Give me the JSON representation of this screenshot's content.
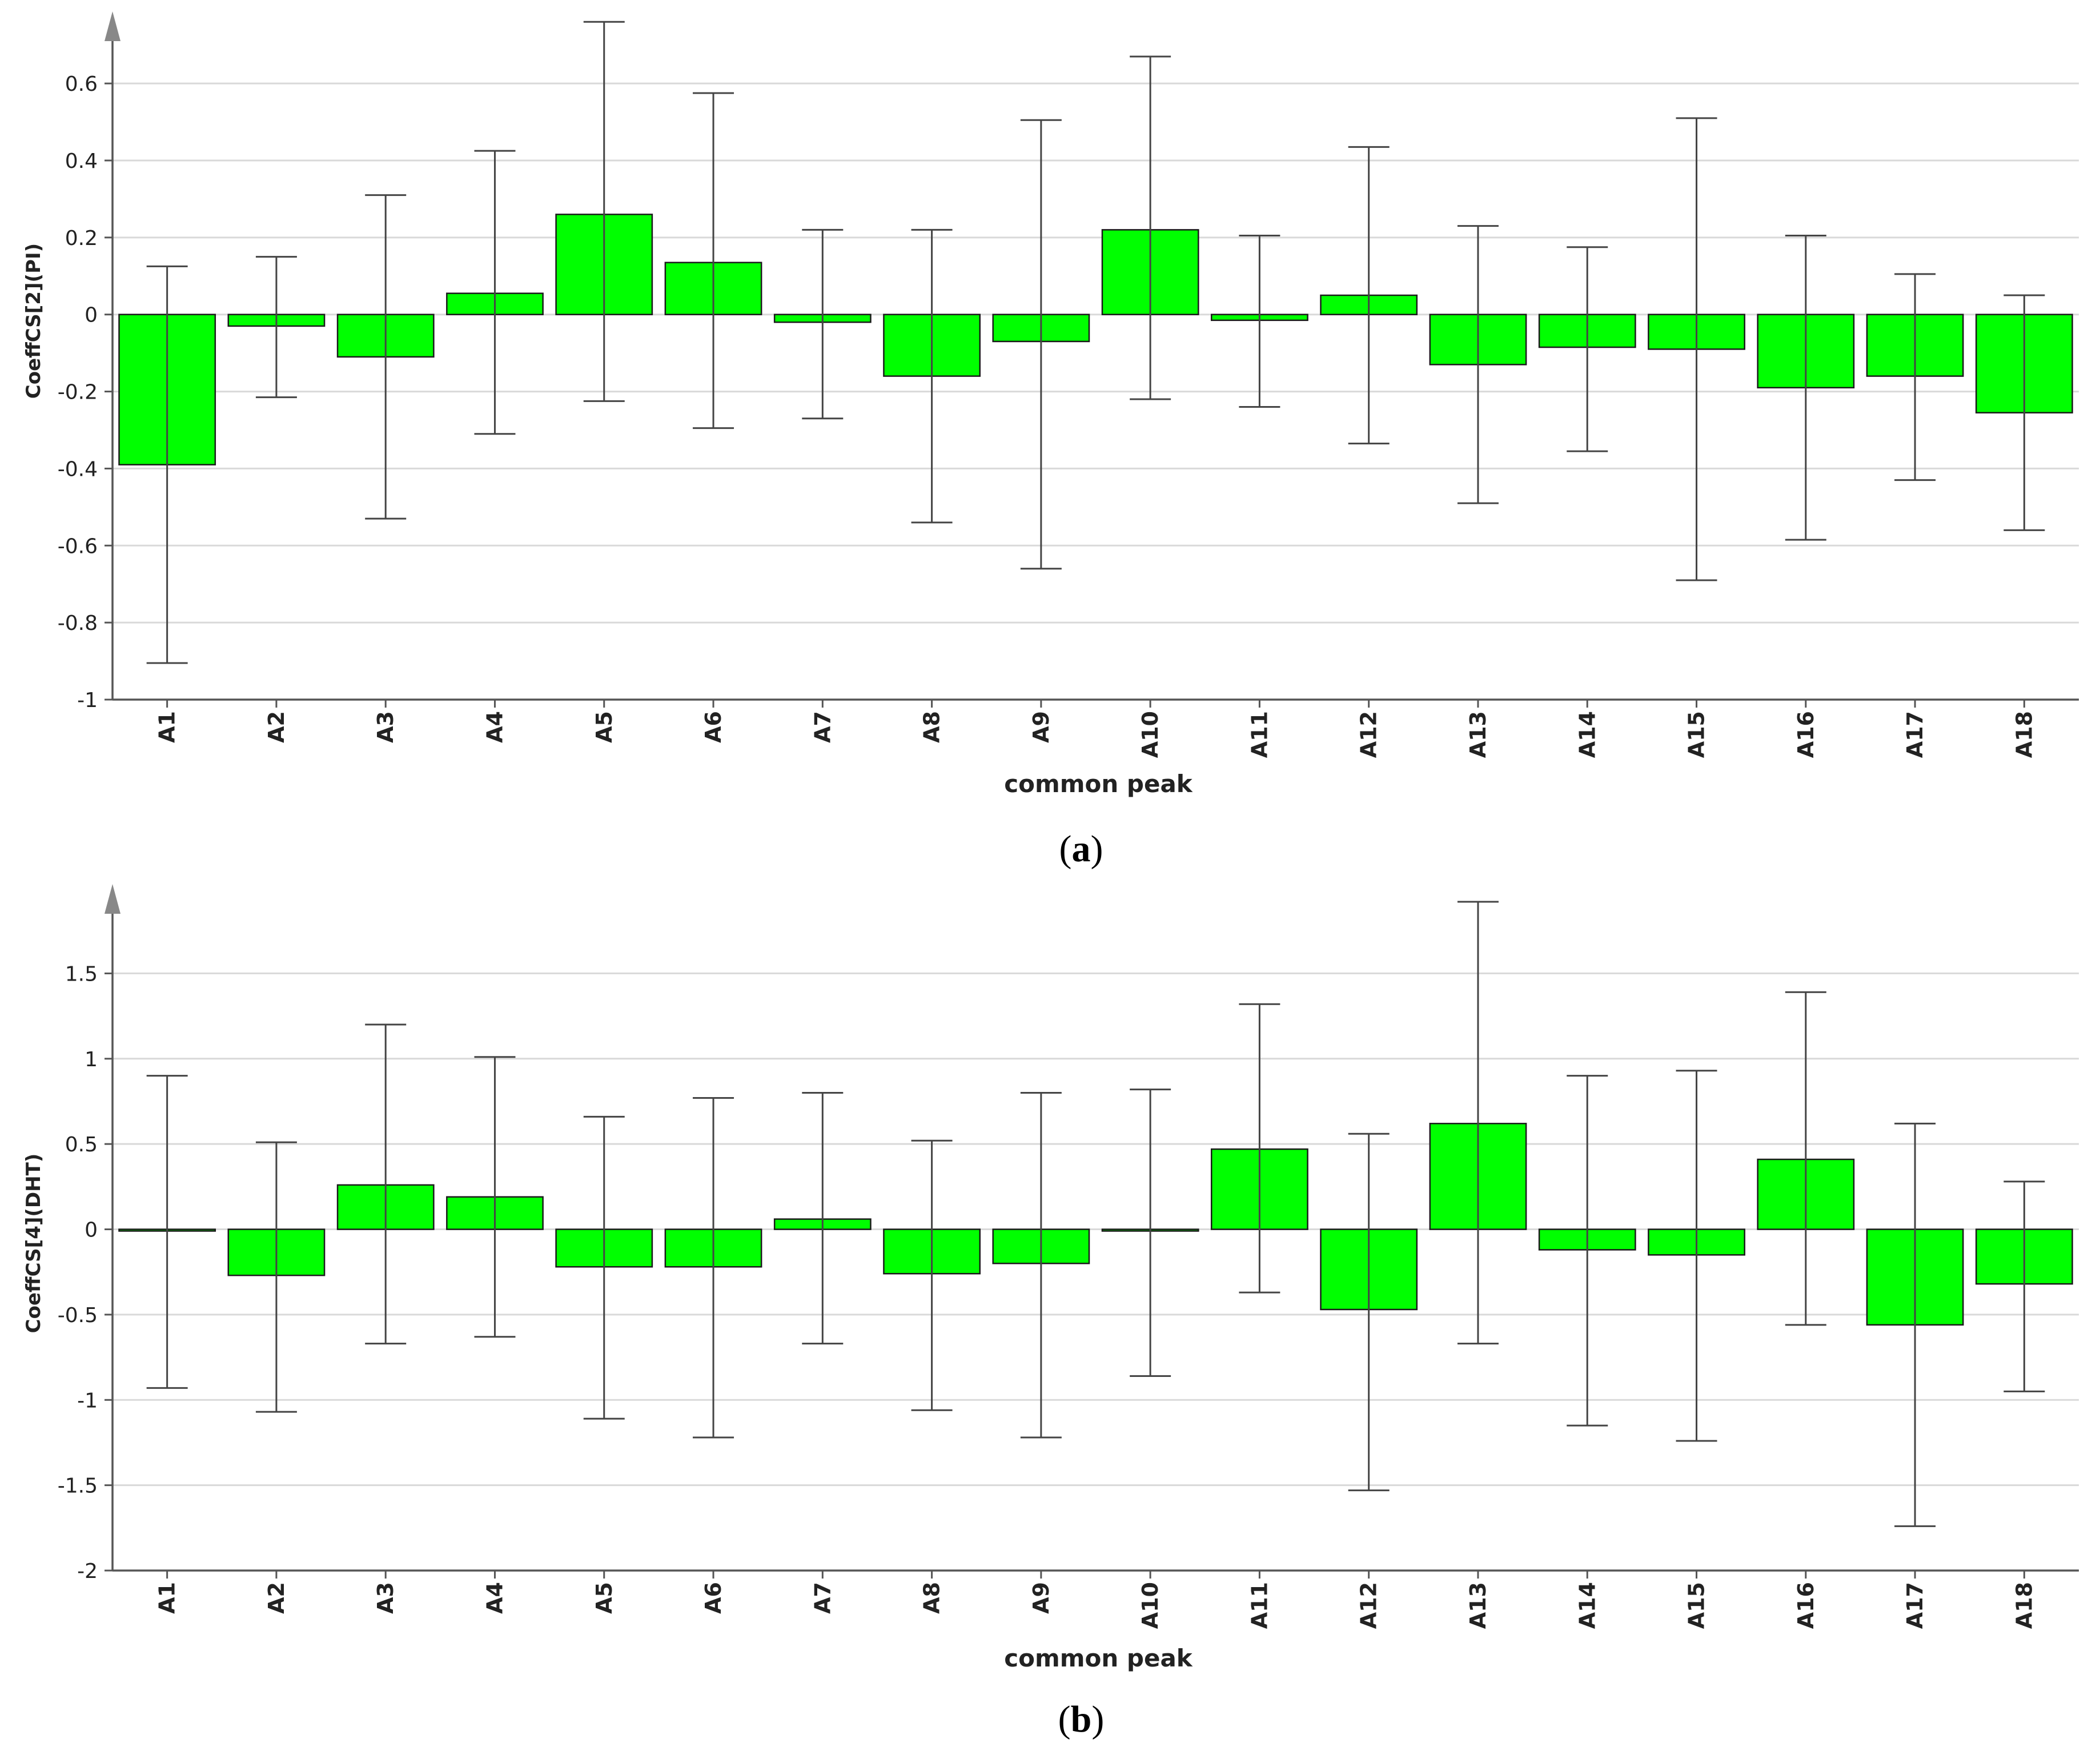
{
  "colors": {
    "bar_fill": "#00ff00",
    "bar_stroke": "#1a1a1a",
    "grid": "#d9d9d9",
    "axis": "#555555",
    "error_bar": "#444444"
  },
  "chart_data": [
    {
      "type": "bar",
      "panel_label": "a",
      "ylabel": "CoeffCS[2](PI)",
      "xlabel": "common peak",
      "ylim": [
        -1,
        0.75
      ],
      "yticks": [
        -1,
        -0.8,
        -0.6,
        -0.4,
        -0.2,
        0,
        0.2,
        0.4,
        0.6
      ],
      "ytick_labels": [
        "-1",
        "-0.8",
        "-0.6",
        "-0.4",
        "-0.2",
        "0",
        "0.2",
        "0.4",
        "0.6"
      ],
      "grid": true,
      "error_bars": true,
      "categories": [
        "A1",
        "A2",
        "A3",
        "A4",
        "A5",
        "A6",
        "A7",
        "A8",
        "A9",
        "A10",
        "A11",
        "A12",
        "A13",
        "A14",
        "A15",
        "A16",
        "A17",
        "A18"
      ],
      "values": [
        -0.39,
        -0.03,
        -0.11,
        0.055,
        0.26,
        0.135,
        -0.02,
        -0.16,
        -0.07,
        0.22,
        -0.015,
        0.05,
        -0.13,
        -0.085,
        -0.09,
        -0.19,
        -0.16,
        -0.255
      ],
      "err_low": [
        -0.905,
        -0.215,
        -0.53,
        -0.31,
        -0.225,
        -0.295,
        -0.27,
        -0.54,
        -0.66,
        -0.22,
        -0.24,
        -0.335,
        -0.49,
        -0.355,
        -0.69,
        -0.585,
        -0.43,
        -0.56
      ],
      "err_high": [
        0.125,
        0.15,
        0.31,
        0.425,
        0.76,
        0.575,
        0.22,
        0.22,
        0.505,
        0.67,
        0.205,
        0.435,
        0.23,
        0.175,
        0.51,
        0.205,
        0.105,
        0.05
      ]
    },
    {
      "type": "bar",
      "panel_label": "b",
      "ylabel": "CoeffCS[4](DHT)",
      "xlabel": "common peak",
      "ylim": [
        -2,
        1.95
      ],
      "yticks": [
        -2,
        -1.5,
        -1,
        -0.5,
        0,
        0.5,
        1,
        1.5
      ],
      "ytick_labels": [
        "-2",
        "-1.5",
        "-1",
        "-0.5",
        "0",
        "0.5",
        "1",
        "1.5"
      ],
      "grid": true,
      "error_bars": true,
      "categories": [
        "A1",
        "A2",
        "A3",
        "A4",
        "A5",
        "A6",
        "A7",
        "A8",
        "A9",
        "A10",
        "A11",
        "A12",
        "A13",
        "A14",
        "A15",
        "A16",
        "A17",
        "A18"
      ],
      "values": [
        -0.01,
        -0.27,
        0.26,
        0.19,
        -0.22,
        -0.22,
        0.06,
        -0.26,
        -0.2,
        -0.01,
        0.47,
        -0.47,
        0.62,
        -0.12,
        -0.15,
        0.41,
        -0.56,
        -0.32
      ],
      "err_low": [
        -0.93,
        -1.07,
        -0.67,
        -0.63,
        -1.11,
        -1.22,
        -0.67,
        -1.06,
        -1.22,
        -0.86,
        -0.37,
        -1.53,
        -0.67,
        -1.15,
        -1.24,
        -0.56,
        -1.74,
        -0.95
      ],
      "err_high": [
        0.9,
        0.51,
        1.2,
        1.01,
        0.66,
        0.77,
        0.8,
        0.52,
        0.8,
        0.82,
        1.32,
        0.56,
        1.92,
        0.9,
        0.93,
        1.39,
        0.62,
        0.28
      ]
    }
  ]
}
